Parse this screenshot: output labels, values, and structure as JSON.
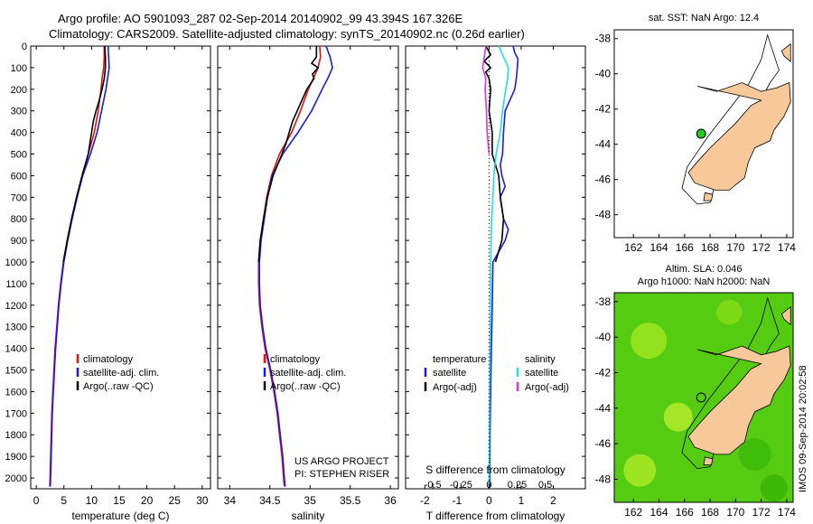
{
  "header": {
    "line1": "Argo profile: AO 5901093_287 02-Sep-2014 20140902_99 43.394S 167.326E",
    "line2": "Climatology: CARS2009. Satellite-adjusted climatology: synTS_20140902.nc (0.26d earlier)"
  },
  "colors": {
    "climatology": "#dd1111",
    "satellite": "#1a1aee",
    "argo": "#000000",
    "sal_satellite": "#22e0e0",
    "sal_argo": "#e030e0",
    "land": "#f6c89a",
    "sla_sea": "#55cc11",
    "argo_marker": "#22cc22"
  },
  "chart_data": [
    {
      "type": "line",
      "panel": "temperature",
      "xlabel": "temperature (deg C)",
      "ylabel": "",
      "xlim": [
        -1,
        31.5
      ],
      "ylim": [
        2050,
        0
      ],
      "xticks": [
        0,
        5,
        10,
        15,
        20,
        25,
        30
      ],
      "yticks": [
        0,
        100,
        200,
        300,
        400,
        500,
        600,
        700,
        800,
        900,
        1000,
        1100,
        1200,
        1300,
        1400,
        1500,
        1600,
        1700,
        1800,
        1900,
        2000
      ],
      "legend": [
        "climatology",
        "satellite-adj. clim.",
        "Argo(..raw -QC)"
      ],
      "legend_position": "lower-middle",
      "series": [
        {
          "name": "climatology",
          "color": "#dd1111",
          "depth": [
            0,
            50,
            100,
            150,
            200,
            300,
            400,
            500,
            600,
            700,
            800,
            900,
            1000,
            1100,
            1200,
            1300,
            1400,
            1500,
            1600,
            1700,
            1800,
            1900,
            2000,
            2040
          ],
          "values": [
            12.3,
            12.3,
            12.2,
            11.9,
            11.7,
            11.2,
            10.5,
            9.4,
            8.3,
            7.3,
            6.4,
            5.6,
            4.9,
            4.4,
            4.0,
            3.7,
            3.4,
            3.2,
            3.0,
            2.8,
            2.7,
            2.6,
            2.5,
            2.45
          ]
        },
        {
          "name": "satellite-adj. clim.",
          "color": "#1a1aee",
          "depth": [
            0,
            50,
            100,
            150,
            200,
            300,
            400,
            500,
            600,
            700,
            800,
            900,
            1000,
            1100,
            1200,
            1300,
            1400,
            1500,
            1600,
            1700,
            1800,
            1900,
            2000,
            2040
          ],
          "values": [
            13.0,
            13.1,
            13.2,
            12.9,
            12.6,
            11.8,
            11.0,
            9.8,
            8.4,
            7.4,
            6.5,
            5.7,
            5.0,
            4.5,
            4.1,
            3.8,
            3.5,
            3.3,
            3.1,
            2.9,
            2.8,
            2.7,
            2.6,
            2.55
          ]
        },
        {
          "name": "Argo(..raw -QC)",
          "color": "#000000",
          "depth": [
            0,
            50,
            100,
            150,
            200,
            250,
            300,
            350,
            400,
            450,
            500,
            600,
            700,
            800,
            900,
            1000
          ],
          "values": [
            12.4,
            12.5,
            12.5,
            12.3,
            11.9,
            11.4,
            10.8,
            10.3,
            10.0,
            9.7,
            9.4,
            8.3,
            7.3,
            6.4,
            5.6,
            4.9
          ]
        }
      ]
    },
    {
      "type": "line",
      "panel": "salinity",
      "xlabel": "salinity",
      "ylabel": "",
      "xlim": [
        33.85,
        36.1
      ],
      "ylim": [
        2050,
        0
      ],
      "xticks": [
        34,
        34.5,
        35,
        35.5,
        36
      ],
      "legend": [
        "climatology",
        "satellite-adj. clim.",
        "Argo(..raw -QC)"
      ],
      "legend_position": "lower-middle",
      "annotation": [
        "US ARGO PROJECT",
        "PI: STEPHEN RISER"
      ],
      "series": [
        {
          "name": "climatology",
          "color": "#dd1111",
          "depth": [
            0,
            50,
            100,
            150,
            200,
            300,
            400,
            500,
            600,
            700,
            800,
            900,
            1000,
            1100,
            1200,
            1300,
            1400,
            1500,
            1600,
            1700,
            1800,
            1900,
            2000,
            2040
          ],
          "values": [
            35.12,
            35.13,
            35.1,
            35.04,
            34.98,
            34.88,
            34.77,
            34.62,
            34.52,
            34.46,
            34.42,
            34.38,
            34.36,
            34.36,
            34.37,
            34.4,
            34.44,
            34.5,
            34.55,
            34.59,
            34.62,
            34.65,
            34.67,
            34.68
          ]
        },
        {
          "name": "satellite-adj. clim.",
          "color": "#1a1aee",
          "depth": [
            0,
            50,
            100,
            150,
            200,
            300,
            400,
            500,
            600,
            700,
            800,
            900,
            1000,
            1100,
            1200,
            1300,
            1400,
            1500,
            1600,
            1700,
            1800,
            1900,
            2000,
            2040
          ],
          "values": [
            35.2,
            35.25,
            35.28,
            35.22,
            35.15,
            35.02,
            34.85,
            34.66,
            34.53,
            34.47,
            34.43,
            34.39,
            34.37,
            34.37,
            34.38,
            34.41,
            34.45,
            34.51,
            34.56,
            34.6,
            34.63,
            34.66,
            34.68,
            34.69
          ]
        },
        {
          "name": "Argo(..raw -QC)",
          "color": "#000000",
          "depth": [
            0,
            50,
            80,
            100,
            130,
            150,
            200,
            250,
            300,
            350,
            400,
            450,
            500,
            600,
            700,
            800,
            900,
            1000
          ],
          "values": [
            35.08,
            35.08,
            35.02,
            35.1,
            35.03,
            35.05,
            34.96,
            34.9,
            34.84,
            34.78,
            34.74,
            34.7,
            34.65,
            34.54,
            34.47,
            34.42,
            34.38,
            34.36
          ]
        }
      ]
    },
    {
      "type": "line",
      "panel": "difference",
      "xlabel": "T difference from climatology",
      "xlabel_top": "S difference from climatology",
      "xlim": [
        -2.6,
        3.0
      ],
      "ylim": [
        2050,
        0
      ],
      "xticks": [
        -2,
        -1,
        0,
        1,
        2
      ],
      "sticks": [
        -0.5,
        -0.25,
        0,
        0.25,
        0.5
      ],
      "legend_temperature_title": "temperature",
      "legend_salinity_title": "salinity",
      "legend": [
        "satellite",
        "Argo(-adj)",
        "satellite",
        "Argo(-adj)"
      ],
      "legend_position": "lower-middle",
      "series": [
        {
          "name": "satellite",
          "group": "temperature",
          "color": "#1a1aee",
          "depth": [
            0,
            30,
            60,
            100,
            150,
            200,
            300,
            400,
            500,
            550,
            600,
            650,
            700,
            800,
            850,
            900,
            1000,
            1200,
            1500,
            1800,
            2000,
            2040
          ],
          "values": [
            0.75,
            0.8,
            0.9,
            0.88,
            0.85,
            0.8,
            0.5,
            0.45,
            0.42,
            0.35,
            0.4,
            0.5,
            0.35,
            0.45,
            0.6,
            0.5,
            0.12,
            0.1,
            0.06,
            0.03,
            0.02,
            0.02
          ]
        },
        {
          "name": "Argo(-adj)",
          "group": "temperature",
          "color": "#000000",
          "depth": [
            0,
            40,
            70,
            100,
            120,
            150,
            200,
            300,
            400,
            500,
            600,
            700,
            800,
            900,
            1000
          ],
          "values": [
            -0.1,
            0.05,
            -0.15,
            0.05,
            -0.1,
            0.0,
            0.05,
            0.0,
            0.1,
            0.1,
            0.3,
            0.35,
            0.45,
            0.4,
            0.2
          ]
        },
        {
          "name": "satellite",
          "group": "salinity",
          "color": "#22e0e0",
          "depth": [
            0,
            50,
            100,
            150,
            200,
            300,
            400,
            500,
            600,
            700,
            800,
            1000,
            1200,
            1500,
            1800,
            2000,
            2040
          ],
          "values": [
            0.3,
            0.45,
            0.6,
            0.58,
            0.52,
            0.42,
            0.35,
            0.22,
            0.15,
            0.12,
            0.08,
            0.05,
            0.04,
            0.02,
            0.01,
            0.0,
            0.0
          ]
        },
        {
          "name": "Argo(-adj)",
          "group": "salinity",
          "color": "#e030e0",
          "depth": [
            0,
            50,
            100,
            150,
            200,
            300,
            400,
            500
          ],
          "values": [
            -0.1,
            -0.15,
            -0.2,
            -0.1,
            -0.12,
            -0.08,
            -0.06,
            0.0
          ]
        }
      ]
    }
  ],
  "maps": [
    {
      "title": "sat. SST: NaN Argo: 12.4",
      "xticks": [
        "162",
        "164",
        "166",
        "168",
        "170",
        "172",
        "174"
      ],
      "yticks": [
        "-38",
        "-40",
        "-42",
        "-44",
        "-46",
        "-48"
      ],
      "marker": {
        "lon": 167.3,
        "lat": -43.4
      }
    },
    {
      "title1": "Altim. SLA: 0.046",
      "title2": "Argo h1000: NaN h2000: NaN",
      "xticks": [
        "162",
        "164",
        "166",
        "168",
        "170",
        "172",
        "174"
      ],
      "yticks": [
        "-38",
        "-40",
        "-42",
        "-44",
        "-46",
        "-48"
      ],
      "marker": {
        "lon": 167.3,
        "lat": -43.4
      }
    }
  ],
  "credit": "IMOS 09-Sep-2014 20:02:58"
}
